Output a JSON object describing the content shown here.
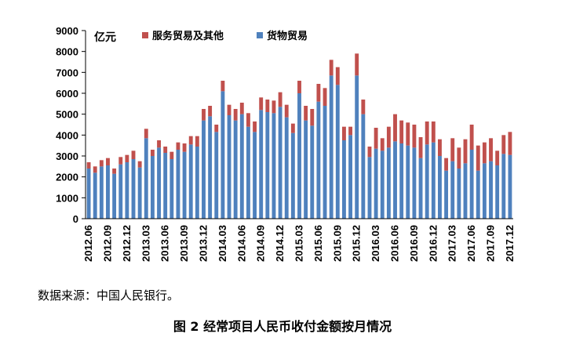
{
  "source_text": "数据来源：中国人民银行。",
  "caption": "图 2 经常项目人民币收付金额按月情况",
  "colors": {
    "goods": "#4F81BD",
    "services": "#C0504D",
    "axis": "#000000"
  },
  "chart_data": {
    "type": "bar",
    "stacked": true,
    "unit": "亿元",
    "ylim": [
      0,
      9000
    ],
    "yticks": [
      0,
      1000,
      2000,
      3000,
      4000,
      5000,
      6000,
      7000,
      8000,
      9000
    ],
    "grid": false,
    "legend_position": "top",
    "categories": [
      "2012.06",
      "2012.07",
      "2012.08",
      "2012.09",
      "2012.10",
      "2012.11",
      "2012.12",
      "2013.01",
      "2013.02",
      "2013.03",
      "2013.04",
      "2013.05",
      "2013.06",
      "2013.07",
      "2013.08",
      "2013.09",
      "2013.10",
      "2013.11",
      "2013.12",
      "2014.01",
      "2014.02",
      "2014.03",
      "2014.04",
      "2014.05",
      "2014.06",
      "2014.07",
      "2014.08",
      "2014.09",
      "2014.10",
      "2014.11",
      "2014.12",
      "2015.01",
      "2015.02",
      "2015.03",
      "2015.04",
      "2015.05",
      "2015.06",
      "2015.07",
      "2015.08",
      "2015.09",
      "2015.10",
      "2015.11",
      "2015.12",
      "2016.01",
      "2016.02",
      "2016.03",
      "2016.04",
      "2016.05",
      "2016.06",
      "2016.07",
      "2016.08",
      "2016.09",
      "2016.10",
      "2016.11",
      "2016.12",
      "2017.01",
      "2017.02",
      "2017.03",
      "2017.04",
      "2017.05",
      "2017.06",
      "2017.07",
      "2017.08",
      "2017.09",
      "2017.10",
      "2017.11",
      "2017.12"
    ],
    "tick_labels": [
      "2012.06",
      "2012.09",
      "2012.12",
      "2013.03",
      "2013.06",
      "2013.09",
      "2013.12",
      "2014.03",
      "2014.06",
      "2014.09",
      "2014.12",
      "2015.03",
      "2015.06",
      "2015.09",
      "2015.12",
      "2016.03",
      "2016.06",
      "2016.09",
      "2016.12",
      "2017.03",
      "2017.06",
      "2017.09",
      "2017.12"
    ],
    "series": [
      {
        "name": "服务贸易及其他",
        "color": "#C0504D",
        "values": [
          300,
          300,
          300,
          350,
          250,
          350,
          350,
          400,
          300,
          450,
          300,
          350,
          300,
          350,
          350,
          400,
          400,
          500,
          550,
          500,
          350,
          500,
          500,
          550,
          550,
          650,
          500,
          600,
          600,
          600,
          700,
          600,
          450,
          600,
          700,
          800,
          850,
          850,
          750,
          850,
          650,
          400,
          1050,
          700,
          500,
          1000,
          600,
          1000,
          1300,
          1100,
          1100,
          1100,
          1000,
          1100,
          1000,
          800,
          600,
          1100,
          1000,
          1150,
          1200,
          1200,
          1000,
          1100,
          700,
          900,
          1100
        ]
      },
      {
        "name": "货物贸易",
        "color": "#4F81BD",
        "values": [
          2400,
          2200,
          2500,
          2550,
          2150,
          2600,
          2700,
          2850,
          2450,
          3850,
          3000,
          3400,
          3150,
          2850,
          3300,
          3200,
          3550,
          3450,
          4700,
          4900,
          4150,
          6100,
          4950,
          4700,
          5000,
          4400,
          4150,
          5200,
          5100,
          5050,
          5350,
          4850,
          4100,
          6000,
          4700,
          4450,
          5600,
          5400,
          6850,
          6400,
          3750,
          4000,
          6850,
          5000,
          2950,
          3350,
          3250,
          3400,
          3700,
          3600,
          3500,
          3400,
          2900,
          3550,
          3650,
          3000,
          2300,
          2750,
          2400,
          2650,
          3300,
          2300,
          2650,
          2750,
          2550,
          3100,
          3050
        ]
      }
    ]
  }
}
